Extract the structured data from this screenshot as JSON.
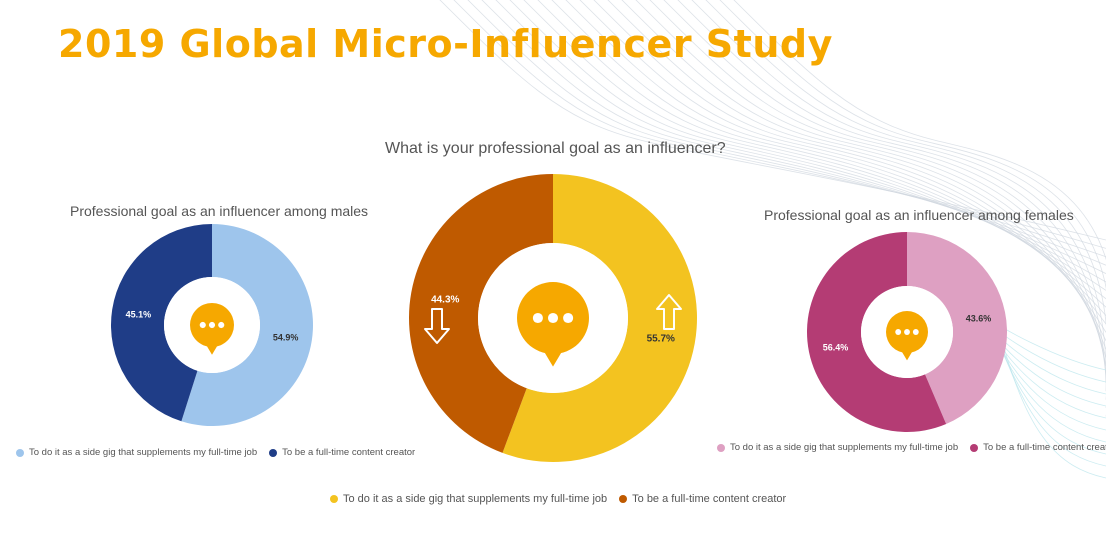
{
  "title": "2019 Global Micro-Influencer Study",
  "chart_data": [
    {
      "type": "pie",
      "title": "Professional goal as an influencer among males",
      "categories": [
        "To do it as a side gig that supplements my full-time job",
        "To be a full-time content creator"
      ],
      "values": [
        54.9,
        45.1
      ],
      "labels": [
        "54.9%",
        "45.1%"
      ],
      "colors": [
        "#9ec5ec",
        "#1f3d87"
      ],
      "legend": "bottom"
    },
    {
      "type": "pie",
      "title": "What is your professional goal as an influencer?",
      "categories": [
        "To do it as a side gig that supplements my full-time job",
        "To be a full-time content creator"
      ],
      "values": [
        55.7,
        44.3
      ],
      "labels": [
        "55.7%",
        "44.3%"
      ],
      "colors": [
        "#f3c320",
        "#bf5a00"
      ],
      "legend": "bottom"
    },
    {
      "type": "pie",
      "title": "Professional goal as an influencer among females",
      "categories": [
        "To do it as a side gig that supplements my full-time job",
        "To be a full-time content creator"
      ],
      "values": [
        43.6,
        56.4
      ],
      "labels": [
        "43.6%",
        "56.4%"
      ],
      "colors": [
        "#dea0c2",
        "#b43c74"
      ],
      "legend": "bottom"
    }
  ],
  "icons": {
    "center_badge": "chat-bubble-icon",
    "up_arrow": "arrow-up-icon",
    "down_arrow": "arrow-down-icon"
  },
  "accent_color": "#f6a800"
}
